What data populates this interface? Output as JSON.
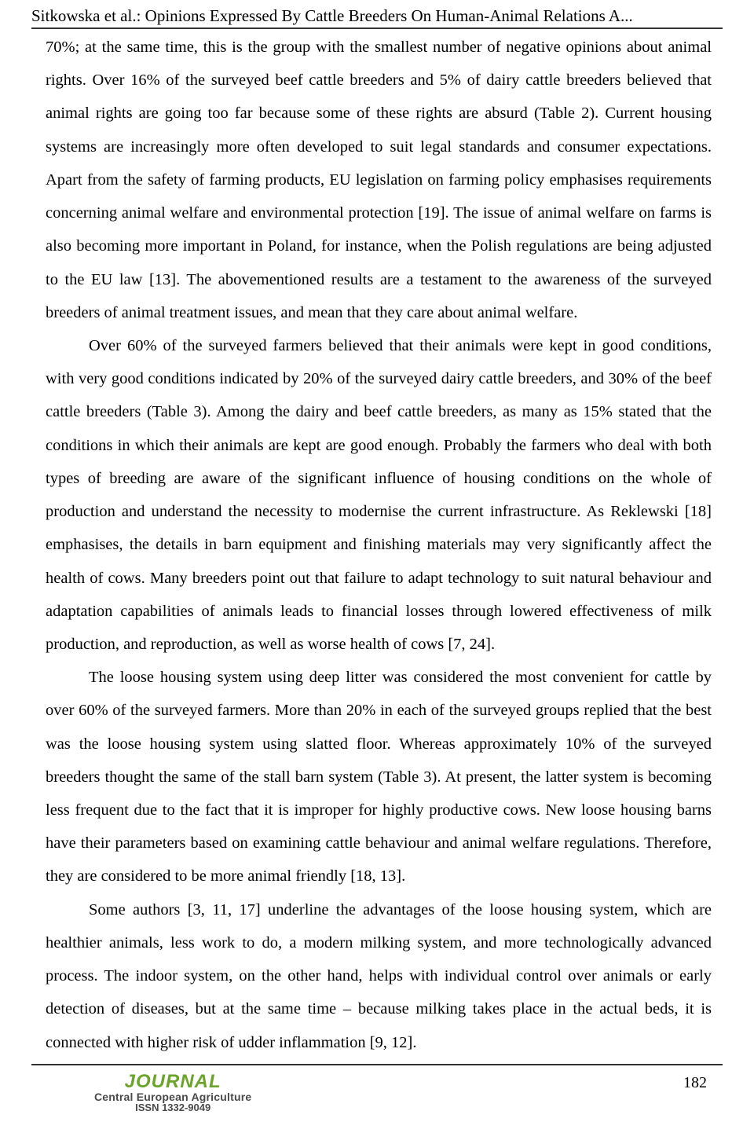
{
  "header": {
    "running_title": "Sitkowska et al.: Opinions Expressed By Cattle Breeders On Human-Animal Relations A..."
  },
  "paragraphs": {
    "p1": "70%; at the same time, this is the group with the smallest number of negative opinions about animal rights. Over 16% of the surveyed beef cattle breeders and 5% of dairy cattle breeders believed that animal rights are going too far because some of these rights are absurd (Table 2). Current housing systems are increasingly more often developed to suit legal standards and consumer expectations. Apart from the safety of farming products, EU legislation on farming policy emphasises requirements concerning animal welfare and environmental protection [19]. The issue of animal welfare on farms is also becoming more important in Poland, for instance, when the Polish regulations are being adjusted to the EU law [13]. The abovementioned results are a testament to the awareness of the surveyed breeders of animal treatment issues, and mean that they care about animal welfare.",
    "p2": "Over 60% of the surveyed farmers believed that their animals were kept in good conditions, with very good conditions indicated by 20% of the surveyed dairy cattle breeders, and 30% of the beef cattle breeders (Table 3). Among the dairy and beef cattle breeders, as many as 15% stated that the conditions in which their animals are kept are good enough. Probably the farmers who deal with both types of breeding are aware of the significant influence of housing conditions on the whole of production and understand the necessity to modernise the current infrastructure. As Reklewski [18] emphasises, the details in barn equipment and finishing materials may very significantly affect the health of cows. Many breeders point out that failure to adapt technology to suit natural behaviour and adaptation capabilities of animals leads to financial losses through lowered effectiveness of milk production, and reproduction, as well as worse health of cows [7, 24].",
    "p3": "The loose housing system using deep litter was considered the most convenient for cattle by over 60% of the surveyed farmers. More than 20% in each of the surveyed groups replied that the best was the loose housing system using slatted floor. Whereas approximately 10% of the surveyed breeders thought the same of the stall barn system (Table 3). At present, the latter system is becoming less frequent due to the fact that it is improper for highly productive cows. New loose housing barns have their parameters based on examining cattle behaviour and animal welfare regulations. Therefore, they are considered to be more animal friendly [18, 13].",
    "p4": "Some authors [3, 11, 17] underline the advantages of the loose housing system, which are healthier animals, less work to do, a modern milking system, and more technologically advanced process. The indoor system, on the other hand, helps with individual control over animals or early detection of diseases, but at the same time – because milking takes place in the actual beds, it is connected with higher risk of udder inflammation [9, 12]."
  },
  "footer": {
    "logo_main": "JOURNAL",
    "logo_sub": "Central European Agriculture",
    "issn": "ISSN 1332-9049",
    "page_number": "182",
    "brand_color": "#6aa52a",
    "sub_color": "#4a4a4a"
  }
}
